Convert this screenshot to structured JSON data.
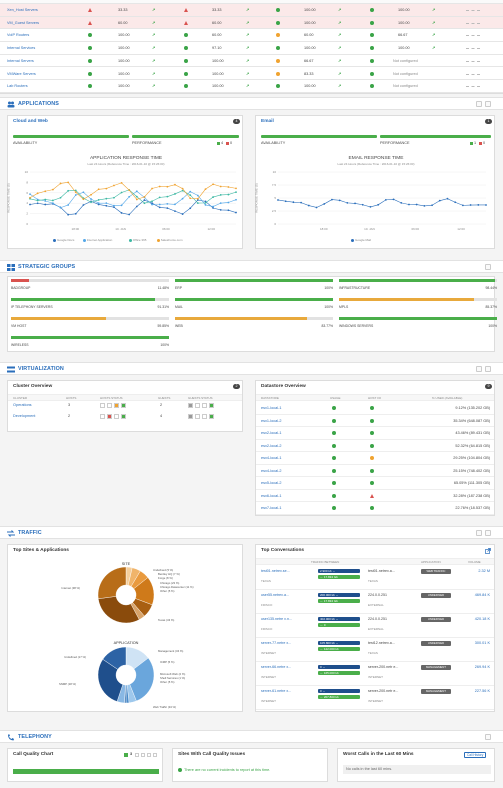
{
  "top_table": {
    "rows": [
      {
        "name": "Xen_Host Servers",
        "a": "33.33",
        "b": "33.33",
        "c": "100.00",
        "d": "100.00",
        "alert": true
      },
      {
        "name": "VM_Guest Servers",
        "a": "60.00",
        "b": "60.00",
        "c": "100.00",
        "d": "100.00",
        "alert": true
      },
      {
        "name": "VoIP Routers",
        "a": "100.00",
        "b": "60.00",
        "c": "60.00",
        "d": "66.67",
        "alert": false
      },
      {
        "name": "Internal Services",
        "a": "100.00",
        "b": "97.10",
        "c": "100.00",
        "d": "100.00",
        "alert": false
      },
      {
        "name": "Internal Servers",
        "a": "100.00",
        "b": "100.00",
        "c": "66.67",
        "d": "Not configured",
        "alert": false
      },
      {
        "name": "VMWare Servers",
        "a": "100.00",
        "b": "100.00",
        "c": "83.33",
        "d": "Not configured",
        "alert": false
      },
      {
        "name": "Lab Routers",
        "a": "100.00",
        "b": "100.00",
        "c": "100.00",
        "d": "Not configured",
        "alert": false
      }
    ]
  },
  "applications": {
    "title": "APPLICATIONS",
    "cloud": {
      "title": "Cloud and Web",
      "count": "4",
      "availability": "AVAILABILITY",
      "performance": "PERFORMANCE",
      "perf_counts": [
        "4",
        "0"
      ],
      "chart_title": "APPLICATION RESPONSE TIME",
      "chart_sub": "Last 24 Hours (Reference Time : 2016-01-10 @ 15:26:00)",
      "ylabel": "RESPONSE TIME (S)",
      "x_ticks": [
        "18:00",
        "10. JAN",
        "06:00",
        "12:00"
      ],
      "y_ticks": [
        "10",
        "8",
        "6",
        "4",
        "2",
        "0"
      ],
      "legend": [
        "Google Docs",
        "Internet Application",
        "Office 365",
        "SalesForce.com"
      ]
    },
    "email": {
      "title": "Email",
      "count": "1",
      "availability": "AVAILABILITY",
      "performance": "PERFORMANCE",
      "perf_counts": [
        "1",
        "0"
      ],
      "chart_title": "EMAIL RESPONSE TIME",
      "chart_sub": "Last 24 Hours (Reference Time : 2016-01-10 @ 15:26:00)",
      "ylabel": "RESPONSE TIME (S)",
      "x_ticks": [
        "18:00",
        "10. JAN",
        "06:00",
        "12:00"
      ],
      "y_ticks": [
        "10",
        "7.5",
        "5",
        "2.5",
        "0"
      ],
      "legend": [
        "Google Mail"
      ]
    }
  },
  "strategic": {
    "title": "STRATEGIC GROUPS",
    "groups": [
      {
        "name": "BADGROUP",
        "value": "11.48%",
        "pct": 11.48,
        "color": "#d9534f"
      },
      {
        "name": "ERP",
        "value": "100%",
        "pct": 100,
        "color": "#4aae4a"
      },
      {
        "name": "INFRASTRUCTURE",
        "value": "98.44%",
        "pct": 98.44,
        "color": "#4aae4a"
      },
      {
        "name": "IP TELEPHONY SERVERS",
        "value": "91.31%",
        "pct": 91.31,
        "color": "#4aae4a"
      },
      {
        "name": "MAIL",
        "value": "100%",
        "pct": 100,
        "color": "#4aae4a"
      },
      {
        "name": "MPLS",
        "value": "85.37%",
        "pct": 85.37,
        "color": "#e8a93c"
      },
      {
        "name": "VM HOST",
        "value": "59.85%",
        "pct": 59.85,
        "color": "#e8a93c"
      },
      {
        "name": "WEB",
        "value": "83.77%",
        "pct": 83.77,
        "color": "#e8a93c"
      },
      {
        "name": "WINDOWS SERVERS",
        "value": "100%",
        "pct": 100,
        "color": "#4aae4a"
      },
      {
        "name": "WIRELESS",
        "value": "100%",
        "pct": 100,
        "color": "#4aae4a"
      }
    ]
  },
  "virtualization": {
    "title": "VIRTUALIZATION",
    "cluster": {
      "title": "Cluster Overview",
      "count": "2",
      "headers": [
        "CLUSTER",
        "HOSTS",
        "HOSTS STATUS",
        "GUESTS",
        "GUESTS STATUS"
      ],
      "rows": [
        {
          "name": "Operations",
          "hosts": "3",
          "guests": "2"
        },
        {
          "name": "Development",
          "hosts": "2",
          "guests": "4"
        }
      ]
    },
    "datastore": {
      "title": "Datastore Overview",
      "count": "9",
      "headers": [
        "DATASTORE",
        "USAGE",
        "HOST I/O",
        "% USED (AVAILABLE)"
      ],
      "rows": [
        {
          "name": "esx1-local-1",
          "used": "9.12% (135.202 GB)",
          "io": "ok"
        },
        {
          "name": "esx1-local-2",
          "used": "35.34% (648.087 GB)",
          "io": "ok"
        },
        {
          "name": "esx2-local-1",
          "used": "43.46% (89.431 GB)",
          "io": "ok"
        },
        {
          "name": "esx2-local-2",
          "used": "52.32% (64.815 GB)",
          "io": "ok"
        },
        {
          "name": "esx4-local-1",
          "used": "29.25% (104.804 GB)",
          "io": "warn"
        },
        {
          "name": "esx4-local-2",
          "used": "25.15% (748.402 GB)",
          "io": "ok"
        },
        {
          "name": "esx5-local-2",
          "used": "65.05% (111.305 GB)",
          "io": "ok"
        },
        {
          "name": "esx6-local-1",
          "used": "32.28% (187.238 GB)",
          "io": "alert"
        },
        {
          "name": "esx7-local-1",
          "used": "22.76% (18.537 GB)",
          "io": "ok"
        }
      ]
    }
  },
  "traffic": {
    "title": "TRAFFIC",
    "sites": {
      "title": "Top Sites & Applications",
      "site_label": "SITE",
      "app_label": "APPLICATION",
      "site_slices": [
        "Undefined (5 %)",
        "Bentley HQ (7 %)",
        "Forge (8 %)",
        "Chicago (23 %)",
        "Chicago Datacenter (11 %)",
        "Other (5 %)",
        "Texas (43 %)",
        "Internet (38 %)"
      ],
      "app_slices": [
        "Undefined (17 %)",
        "Management (34 %)",
        "ICMP (5 %)",
        "Microsoft Web (2 %)",
        "Shell Services (1 %)",
        "Other (5 %)",
        "Web Traffic (34 %)",
        "SNMP (18 %)"
      ]
    },
    "conversations": {
      "title": "Top Conversations",
      "headers": [
        "TRAFFIC BETWEEN",
        "APPLICATION",
        "VOLUME"
      ],
      "rows": [
        {
          "src": "test01.netrex.se...",
          "src_loc": "TEXAS",
          "rate1": "2.900 kb ↔",
          "rate2": "↔ 17.834 Gb",
          "dst": "test01.netrex.a...",
          "dst_loc": "TEXAS",
          "app": "WEB TRAFFIC",
          "vol": "2.32 M"
        },
        {
          "src": "user55.netrex.a...",
          "src_loc": "FRISCO",
          "rate1": "200.000 kb ↔",
          "rate2": "↔ 17.834 Gb",
          "dst": "224.0.0.251",
          "dst_loc": "EXTERNAL",
          "app": "UNDEFINED",
          "vol": "469.84 K"
        },
        {
          "src": "user135.netre x.n...",
          "src_loc": "FRISCO",
          "rate1": "402.000 kb ↔",
          "rate2": "↔ 0",
          "dst": "224.0.0.251",
          "dst_loc": "EXTERNAL",
          "app": "UNDEFINED",
          "vol": "420.18 K"
        },
        {
          "src": "server-77.netre x...",
          "src_loc": "INTERNET",
          "rate1": "105.800 kb ↔",
          "rate2": "↔ 122.000 kb",
          "dst": "test12.netrex.a...",
          "dst_loc": "TEXAS",
          "app": "UNDEFINED",
          "vol": "300.01 K"
        },
        {
          "src": "server-66.netre x...",
          "src_loc": "INTERNET",
          "rate1": "0 ↔",
          "rate2": "↔ 165.000 kb",
          "dst": "server-200.netr e...",
          "dst_loc": "INTERNET",
          "app": "MANAGEMENT",
          "vol": "269.94 K"
        },
        {
          "src": "server-61.netre x...",
          "src_loc": "INTERNET",
          "rate1": "0 ↔",
          "rate2": "↔ 207.800 kb",
          "dst": "server-200.netr e...",
          "dst_loc": "INTERNET",
          "app": "MANAGEMENT",
          "vol": "227.56 K"
        }
      ]
    }
  },
  "telephony": {
    "title": "TELEPHONY",
    "quality": {
      "title": "Call Quality Chart",
      "count": "3"
    },
    "sites": {
      "title": "Sites With Call Quality Issues",
      "msg": "There are no current incidents to report at this time."
    },
    "worst": {
      "title": "Worst Calls in the Last 60 Mins",
      "btn": "Call History",
      "msg": "No calls in the last 60 mins."
    }
  }
}
